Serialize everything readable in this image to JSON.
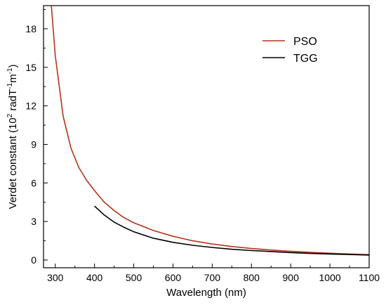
{
  "chart_data": {
    "type": "line",
    "title": "",
    "xlabel": "Wavelength (nm)",
    "ylabel_main": "Verdet constant (10",
    "ylabel_exp1": "2",
    "ylabel_mid": " radT",
    "ylabel_exp2": "-1",
    "ylabel_mid2": "m",
    "ylabel_exp3": "-1",
    "ylabel_end": ")",
    "xlim": [
      270,
      1100
    ],
    "ylim": [
      -0.6,
      19.8
    ],
    "xticks": [
      "300",
      "400",
      "500",
      "600",
      "700",
      "800",
      "900",
      "1000",
      "1100"
    ],
    "yticks": [
      "0",
      "3",
      "6",
      "9",
      "12",
      "15",
      "18"
    ],
    "grid": false,
    "legend_position": "top-right",
    "series": [
      {
        "name": "PSO",
        "color": "#b5341b",
        "x": [
          290,
          300,
          320,
          340,
          360,
          380,
          400,
          425,
          450,
          475,
          500,
          550,
          600,
          650,
          700,
          750,
          800,
          850,
          900,
          950,
          1000,
          1050,
          1100
        ],
        "y": [
          19.8,
          15.9,
          11.2,
          8.7,
          7.2,
          6.2,
          5.4,
          4.5,
          3.85,
          3.3,
          2.9,
          2.3,
          1.85,
          1.5,
          1.25,
          1.05,
          0.9,
          0.78,
          0.68,
          0.6,
          0.53,
          0.47,
          0.42
        ]
      },
      {
        "name": "TGG",
        "color": "#000000",
        "x": [
          400,
          425,
          450,
          475,
          500,
          550,
          600,
          650,
          700,
          750,
          800,
          850,
          900,
          950,
          1000,
          1050,
          1100
        ],
        "y": [
          4.2,
          3.5,
          2.95,
          2.55,
          2.2,
          1.7,
          1.38,
          1.15,
          0.98,
          0.84,
          0.74,
          0.66,
          0.58,
          0.52,
          0.47,
          0.43,
          0.39
        ]
      }
    ]
  }
}
